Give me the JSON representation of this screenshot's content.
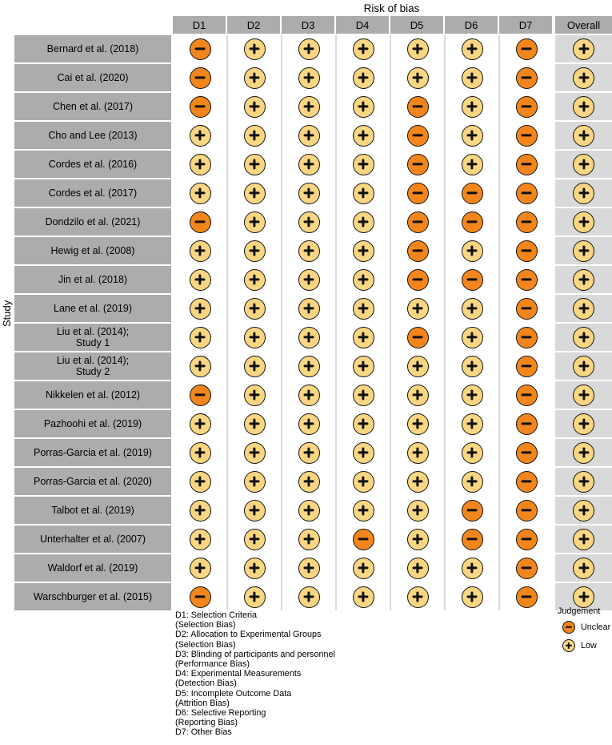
{
  "colors": {
    "unclear": "#F2861C",
    "low": "#F9D681",
    "strip_bg": "#ACACAC",
    "overall_bg": "#D9D9D9",
    "gridline": "#D9D9D9"
  },
  "legend": {
    "title": "Judgement",
    "items": [
      {
        "value": "unclear",
        "label": "Unclear",
        "symbol": "−"
      },
      {
        "value": "low",
        "label": "Low",
        "symbol": "+"
      }
    ]
  },
  "footnotes": [
    "D1: Selection Criteria",
    "(Selection Bias)",
    "D2: Allocation to Experimental Groups",
    "(Selection Bias)",
    "D3: Blinding of participants and personnel",
    "(Performance Bias)",
    "D4: Experimental Measurements",
    "(Detection Bias)",
    "D5: Incomplete Outcome Data",
    "(Attrition Bias)",
    "D6: Selective Reporting",
    "(Reporting Bias)",
    "D7: Other Bias"
  ],
  "chart_data": {
    "type": "heatmap",
    "title": "Risk of bias",
    "ylabel": "Study",
    "rating_levels": [
      "unclear",
      "low"
    ],
    "columns": [
      "D1",
      "D2",
      "D3",
      "D4",
      "D5",
      "D6",
      "D7",
      "Overall"
    ],
    "studies": [
      "Bernard et al. (2018)",
      "Cai et al. (2020)",
      "Chen et al. (2017)",
      "Cho and Lee (2013)",
      "Cordes et al. (2016)",
      "Cordes et al. (2017)",
      "Dondzilo et al. (2021)",
      "Hewig et al. (2008)",
      "Jin et al. (2018)",
      "Lane et al. (2019)",
      "Liu et al. (2014);\nStudy 1",
      "Liu et al. (2014);\nStudy 2",
      "Nikkelen et al. (2012)",
      "Pazhoohi et al. (2019)",
      "Porras-Garcia et al. (2019)",
      "Porras-Garcia et al. (2020)",
      "Talbot et al. (2019)",
      "Unterhalter et al. (2007)",
      "Waldorf et al. (2019)",
      "Warschburger et al. (2015)"
    ],
    "ratings": [
      [
        "unclear",
        "low",
        "low",
        "low",
        "low",
        "low",
        "unclear",
        "low"
      ],
      [
        "unclear",
        "low",
        "low",
        "low",
        "low",
        "low",
        "unclear",
        "low"
      ],
      [
        "unclear",
        "low",
        "low",
        "low",
        "unclear",
        "low",
        "unclear",
        "low"
      ],
      [
        "low",
        "low",
        "low",
        "low",
        "unclear",
        "low",
        "unclear",
        "low"
      ],
      [
        "low",
        "low",
        "low",
        "low",
        "unclear",
        "low",
        "unclear",
        "low"
      ],
      [
        "low",
        "low",
        "low",
        "low",
        "unclear",
        "unclear",
        "unclear",
        "low"
      ],
      [
        "unclear",
        "low",
        "low",
        "low",
        "unclear",
        "unclear",
        "unclear",
        "low"
      ],
      [
        "low",
        "low",
        "low",
        "low",
        "unclear",
        "low",
        "unclear",
        "low"
      ],
      [
        "low",
        "low",
        "low",
        "low",
        "unclear",
        "unclear",
        "unclear",
        "low"
      ],
      [
        "low",
        "low",
        "low",
        "low",
        "low",
        "low",
        "unclear",
        "low"
      ],
      [
        "low",
        "low",
        "low",
        "low",
        "unclear",
        "low",
        "unclear",
        "low"
      ],
      [
        "low",
        "low",
        "low",
        "low",
        "low",
        "low",
        "unclear",
        "low"
      ],
      [
        "unclear",
        "low",
        "low",
        "low",
        "low",
        "low",
        "unclear",
        "low"
      ],
      [
        "low",
        "low",
        "low",
        "low",
        "low",
        "low",
        "unclear",
        "low"
      ],
      [
        "low",
        "low",
        "low",
        "low",
        "low",
        "low",
        "unclear",
        "low"
      ],
      [
        "low",
        "low",
        "low",
        "low",
        "low",
        "low",
        "unclear",
        "low"
      ],
      [
        "low",
        "low",
        "low",
        "low",
        "low",
        "unclear",
        "unclear",
        "low"
      ],
      [
        "low",
        "low",
        "low",
        "unclear",
        "low",
        "unclear",
        "unclear",
        "low"
      ],
      [
        "low",
        "low",
        "low",
        "low",
        "low",
        "low",
        "unclear",
        "low"
      ],
      [
        "unclear",
        "low",
        "low",
        "low",
        "low",
        "low",
        "unclear",
        "low"
      ]
    ]
  }
}
